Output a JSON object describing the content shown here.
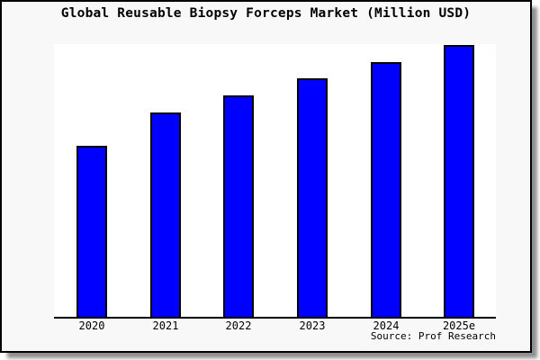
{
  "window": {
    "frame_bg": "#f8f8f8",
    "frame_border": "#000000",
    "shadow_color": "#8f8f8f",
    "plot_bg": "#ffffff",
    "axis_color": "#000000"
  },
  "chart_data": {
    "type": "bar",
    "title": "Global Reusable Biopsy Forceps Market (Million USD)",
    "unit": "Million USD",
    "categories": [
      "2020",
      "2021",
      "2022",
      "2023",
      "2024",
      "2025e"
    ],
    "values_relative_pct": [
      62.9,
      75.2,
      81.5,
      87.7,
      93.7,
      100
    ],
    "value_note": "y-axis shows no scale or ticks; values are bar heights as percent of the tallest (2025e) bar",
    "xlabel": "",
    "ylabel": "",
    "y_axis_visible": false,
    "grid": false,
    "legend": "none",
    "bar_color": "#0000ff",
    "bar_border_color": "#000000",
    "source_label": "Source: Prof Research"
  }
}
